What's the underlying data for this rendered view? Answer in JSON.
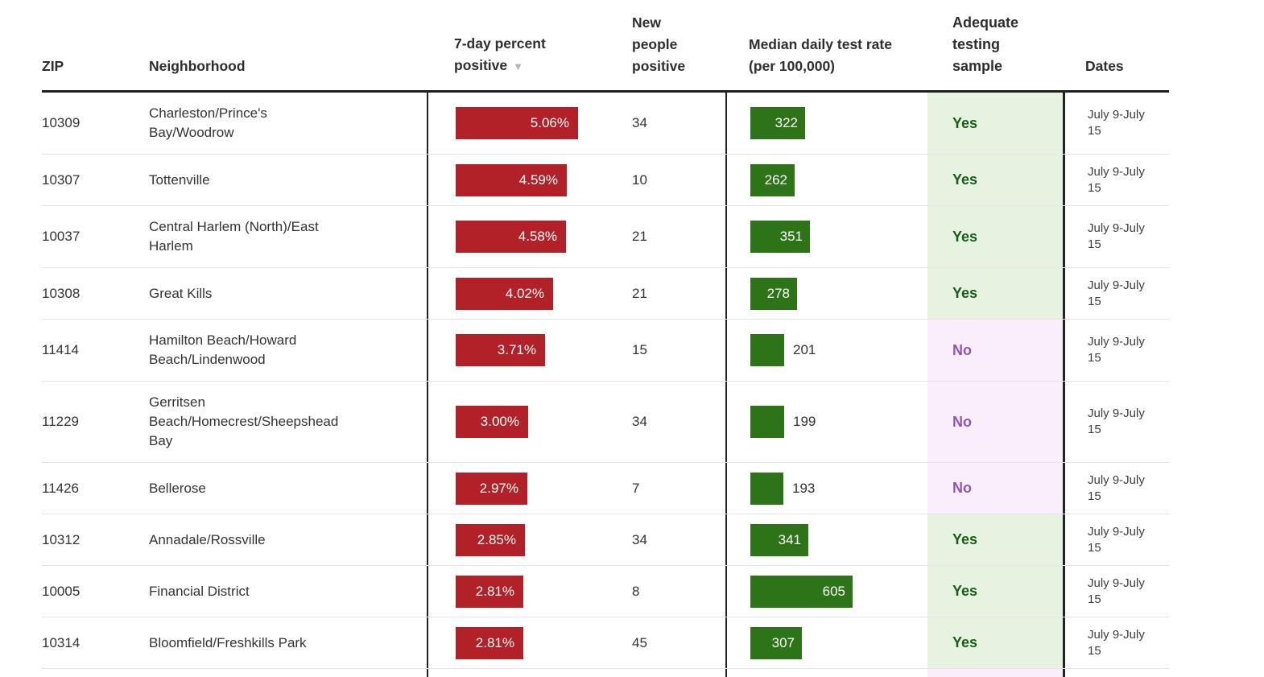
{
  "colors": {
    "bar_red": "#b22127",
    "bar_green": "#2d7419",
    "yes_bg": "#e7f3e0",
    "yes_text": "#175e17",
    "no_bg": "#faeefc",
    "no_text": "#8d55b4",
    "header_text": "#2e2e2e",
    "body_text": "#333333",
    "dates_text": "#3d3d3d",
    "row_border": "#e4e4e4",
    "dark_border": "#222222",
    "sort_arrow": "#b6b6b6"
  },
  "icons": {
    "sort_desc": "▼"
  },
  "table": {
    "columns": [
      {
        "key": "zip",
        "label": "ZIP"
      },
      {
        "key": "neighborhood",
        "label": "Neighborhood"
      },
      {
        "key": "pct",
        "label": "7-day percent positive",
        "sorted": "descending"
      },
      {
        "key": "people",
        "label": "New people positive"
      },
      {
        "key": "rate",
        "label": "Median daily test rate (per 100,000)"
      },
      {
        "key": "adequate",
        "label": "Adequate testing sample"
      },
      {
        "key": "dates",
        "label": "Dates"
      }
    ],
    "rows": [
      {
        "zip": "10309",
        "neighborhood": "Charleston/Prince's Bay/Woodrow",
        "pct": 5.06,
        "pct_label": "5.06%",
        "people": "34",
        "rate": 322,
        "adequate": "Yes",
        "dates": "July 9-July 15"
      },
      {
        "zip": "10307",
        "neighborhood": "Tottenville",
        "pct": 4.59,
        "pct_label": "4.59%",
        "people": "10",
        "rate": 262,
        "adequate": "Yes",
        "dates": "July 9-July 15"
      },
      {
        "zip": "10037",
        "neighborhood": "Central Harlem (North)/East Harlem",
        "pct": 4.58,
        "pct_label": "4.58%",
        "people": "21",
        "rate": 351,
        "adequate": "Yes",
        "dates": "July 9-July 15"
      },
      {
        "zip": "10308",
        "neighborhood": "Great Kills",
        "pct": 4.02,
        "pct_label": "4.02%",
        "people": "21",
        "rate": 278,
        "adequate": "Yes",
        "dates": "July 9-July 15"
      },
      {
        "zip": "11414",
        "neighborhood": "Hamilton Beach/Howard Beach/Lindenwood",
        "pct": 3.71,
        "pct_label": "3.71%",
        "people": "15",
        "rate": 201,
        "adequate": "No",
        "dates": "July 9-July 15"
      },
      {
        "zip": "11229",
        "neighborhood": "Gerritsen Beach/Homecrest/Sheepshead Bay",
        "pct": 3.0,
        "pct_label": "3.00%",
        "people": "34",
        "rate": 199,
        "adequate": "No",
        "dates": "July 9-July 15"
      },
      {
        "zip": "11426",
        "neighborhood": "Bellerose",
        "pct": 2.97,
        "pct_label": "2.97%",
        "people": "7",
        "rate": 193,
        "adequate": "No",
        "dates": "July 9-July 15"
      },
      {
        "zip": "10312",
        "neighborhood": "Annadale/Rossville",
        "pct": 2.85,
        "pct_label": "2.85%",
        "people": "34",
        "rate": 341,
        "adequate": "Yes",
        "dates": "July 9-July 15"
      },
      {
        "zip": "10005",
        "neighborhood": "Financial District",
        "pct": 2.81,
        "pct_label": "2.81%",
        "people": "8",
        "rate": 605,
        "adequate": "Yes",
        "dates": "July 9-July 15"
      },
      {
        "zip": "10314",
        "neighborhood": "Bloomfield/Freshkills Park",
        "pct": 2.81,
        "pct_label": "2.81%",
        "people": "45",
        "rate": 307,
        "adequate": "Yes",
        "dates": "July 9-July 15"
      }
    ]
  }
}
